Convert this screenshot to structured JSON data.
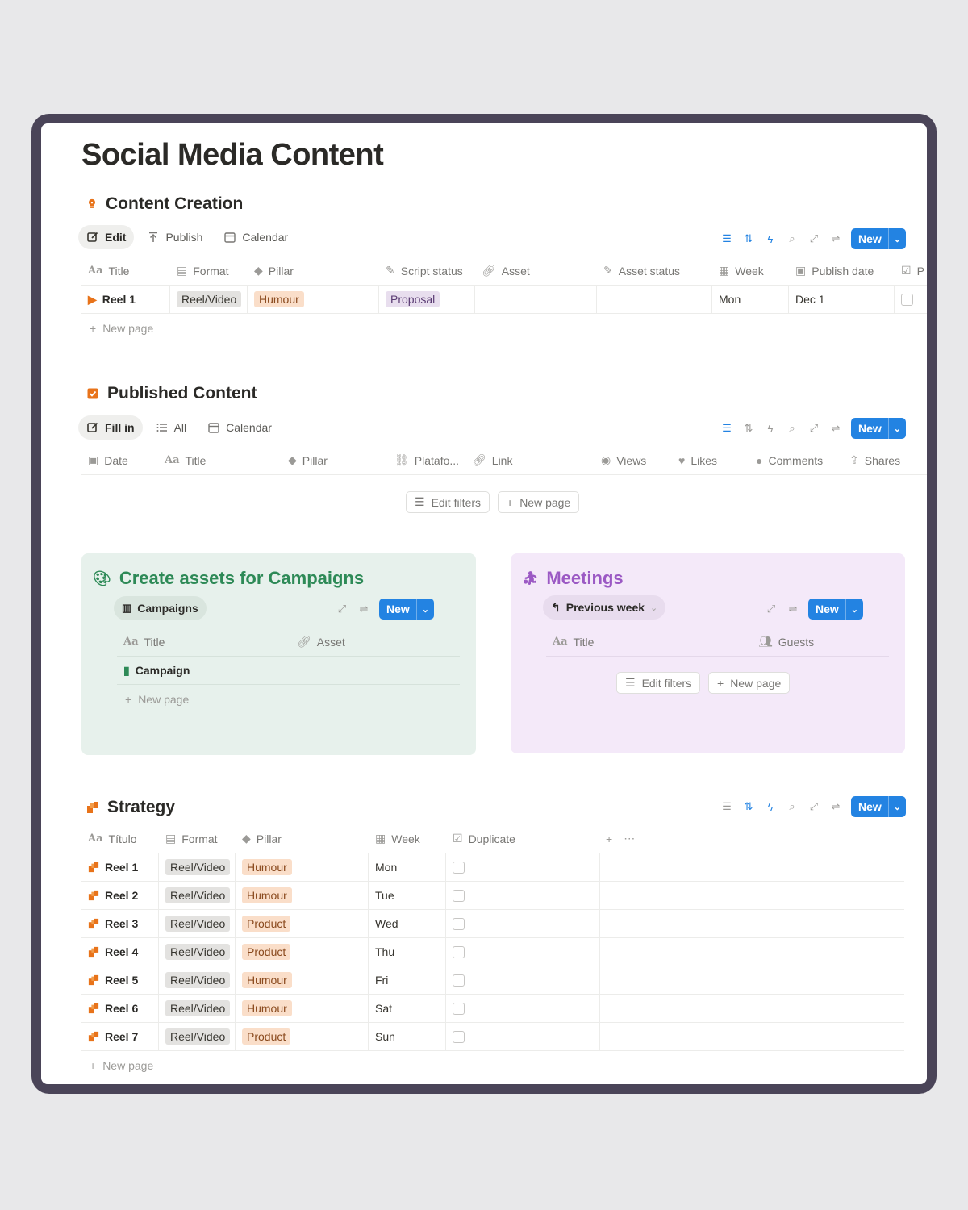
{
  "page": {
    "title": "Social Media Content"
  },
  "content_creation": {
    "heading": "Content Creation",
    "tabs": [
      {
        "label": "Edit",
        "icon": "edit-icon"
      },
      {
        "label": "Publish",
        "icon": "publish-icon"
      },
      {
        "label": "Calendar",
        "icon": "calendar-icon"
      }
    ],
    "new_label": "New",
    "columns": [
      "Title",
      "Format",
      "Pillar",
      "Script status",
      "Asset",
      "Asset status",
      "Week",
      "Publish date",
      "P"
    ],
    "rows": [
      {
        "title": "Reel 1",
        "format": "Reel/Video",
        "pillar": "Humour",
        "script_status": "Proposal",
        "asset": "",
        "asset_status": "",
        "week": "Mon",
        "publish_date": "Dec 1"
      }
    ],
    "new_page": "New page"
  },
  "published_content": {
    "heading": "Published Content",
    "tabs": [
      {
        "label": "Fill in",
        "icon": "edit-icon"
      },
      {
        "label": "All",
        "icon": "list-icon"
      },
      {
        "label": "Calendar",
        "icon": "calendar-icon"
      }
    ],
    "new_label": "New",
    "columns": [
      "Date",
      "Title",
      "Pillar",
      "Platafo...",
      "Link",
      "Views",
      "Likes",
      "Comments",
      "Shares"
    ],
    "edit_filters": "Edit filters",
    "new_page": "New page"
  },
  "campaigns": {
    "heading": "Create assets for Campaigns",
    "tab": "Campaigns",
    "new_label": "New",
    "columns": [
      "Title",
      "Asset"
    ],
    "rows": [
      {
        "title": "Campaign",
        "asset": ""
      }
    ],
    "new_page": "New page"
  },
  "meetings": {
    "heading": "Meetings",
    "tab": "Previous week",
    "new_label": "New",
    "columns": [
      "Title",
      "Guests"
    ],
    "edit_filters": "Edit filters",
    "new_page": "New page"
  },
  "strategy": {
    "heading": "Strategy",
    "new_label": "New",
    "columns": [
      "Título",
      "Format",
      "Pillar",
      "Week",
      "Duplicate"
    ],
    "rows": [
      {
        "title": "Reel 1",
        "format": "Reel/Video",
        "pillar": "Humour",
        "week": "Mon"
      },
      {
        "title": "Reel 2",
        "format": "Reel/Video",
        "pillar": "Humour",
        "week": "Tue"
      },
      {
        "title": "Reel 3",
        "format": "Reel/Video",
        "pillar": "Product",
        "week": "Wed"
      },
      {
        "title": "Reel 4",
        "format": "Reel/Video",
        "pillar": "Product",
        "week": "Thu"
      },
      {
        "title": "Reel 5",
        "format": "Reel/Video",
        "pillar": "Humour",
        "week": "Fri"
      },
      {
        "title": "Reel 6",
        "format": "Reel/Video",
        "pillar": "Humour",
        "week": "Sat"
      },
      {
        "title": "Reel 7",
        "format": "Reel/Video",
        "pillar": "Product",
        "week": "Sun"
      }
    ],
    "new_page": "New page"
  },
  "colors": {
    "accent_blue": "#2383e2",
    "campaign_green": "#2e8a57",
    "meetings_purple": "#9b59c4",
    "card_green_bg": "#e7f1ec",
    "card_purple_bg": "#f4e9f9",
    "frame": "#4a4458"
  }
}
